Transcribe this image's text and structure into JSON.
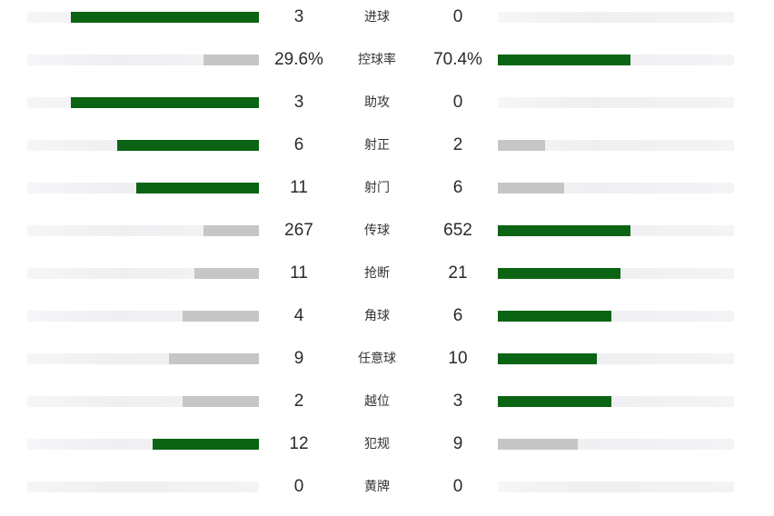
{
  "colors": {
    "winner": "#0b6414",
    "loser": "#c6c6c6",
    "track": "#f1f1f4"
  },
  "rows": [
    {
      "label": "进球",
      "home": "3",
      "away": "0",
      "home_fill": 0.81,
      "away_fill": 0.0,
      "home_color": "#0b6414",
      "away_color": "#c6c6c6"
    },
    {
      "label": "控球率",
      "home": "29.6%",
      "away": "70.4%",
      "home_fill": 0.24,
      "away_fill": 0.56,
      "home_color": "#c6c6c6",
      "away_color": "#0b6414"
    },
    {
      "label": "助攻",
      "home": "3",
      "away": "0",
      "home_fill": 0.81,
      "away_fill": 0.0,
      "home_color": "#0b6414",
      "away_color": "#c6c6c6"
    },
    {
      "label": "射正",
      "home": "6",
      "away": "2",
      "home_fill": 0.61,
      "away_fill": 0.2,
      "home_color": "#0b6414",
      "away_color": "#c6c6c6"
    },
    {
      "label": "射门",
      "home": "11",
      "away": "6",
      "home_fill": 0.53,
      "away_fill": 0.28,
      "home_color": "#0b6414",
      "away_color": "#c6c6c6"
    },
    {
      "label": "传球",
      "home": "267",
      "away": "652",
      "home_fill": 0.24,
      "away_fill": 0.56,
      "home_color": "#c6c6c6",
      "away_color": "#0b6414"
    },
    {
      "label": "抢断",
      "home": "11",
      "away": "21",
      "home_fill": 0.28,
      "away_fill": 0.52,
      "home_color": "#c6c6c6",
      "away_color": "#0b6414"
    },
    {
      "label": "角球",
      "home": "4",
      "away": "6",
      "home_fill": 0.33,
      "away_fill": 0.48,
      "home_color": "#c6c6c6",
      "away_color": "#0b6414"
    },
    {
      "label": "任意球",
      "home": "9",
      "away": "10",
      "home_fill": 0.39,
      "away_fill": 0.42,
      "home_color": "#c6c6c6",
      "away_color": "#0b6414"
    },
    {
      "label": "越位",
      "home": "2",
      "away": "3",
      "home_fill": 0.33,
      "away_fill": 0.48,
      "home_color": "#c6c6c6",
      "away_color": "#0b6414"
    },
    {
      "label": "犯规",
      "home": "12",
      "away": "9",
      "home_fill": 0.46,
      "away_fill": 0.34,
      "home_color": "#0b6414",
      "away_color": "#c6c6c6"
    },
    {
      "label": "黄牌",
      "home": "0",
      "away": "0",
      "home_fill": 0.0,
      "away_fill": 0.0,
      "home_color": "#c6c6c6",
      "away_color": "#c6c6c6"
    }
  ]
}
